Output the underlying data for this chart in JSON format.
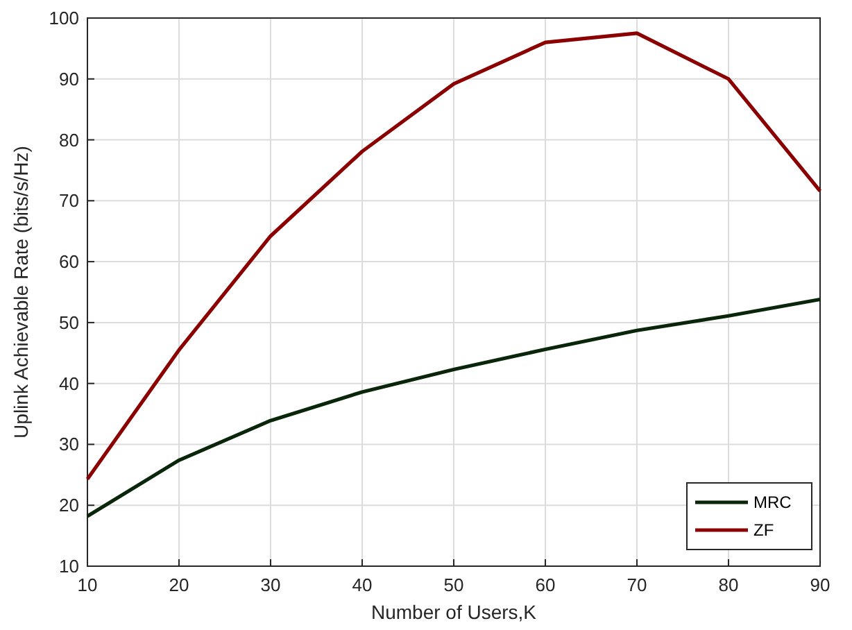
{
  "chart_data": {
    "type": "line",
    "xlabel": "Number of Users,K",
    "ylabel": "Uplink Achievable Rate (bits/s/Hz)",
    "x": [
      10,
      20,
      30,
      40,
      50,
      60,
      70,
      80,
      90
    ],
    "series": [
      {
        "name": "MRC",
        "color": "#0a260a",
        "values": [
          18.2,
          27.4,
          33.9,
          38.6,
          42.3,
          45.6,
          48.7,
          51.1,
          53.8
        ]
      },
      {
        "name": "ZF",
        "color": "#8b0000",
        "values": [
          24.3,
          45.5,
          64.2,
          78.1,
          89.2,
          96,
          97.5,
          90,
          71.6
        ]
      }
    ],
    "xlim": [
      10,
      90
    ],
    "xticks": [
      10,
      20,
      30,
      40,
      50,
      60,
      70,
      80,
      90
    ],
    "ylim": [
      10,
      100
    ],
    "yticks": [
      10,
      20,
      30,
      40,
      50,
      60,
      70,
      80,
      90,
      100
    ],
    "grid": true,
    "legend": "bottom right",
    "marker": "none",
    "line_style": "solid"
  }
}
